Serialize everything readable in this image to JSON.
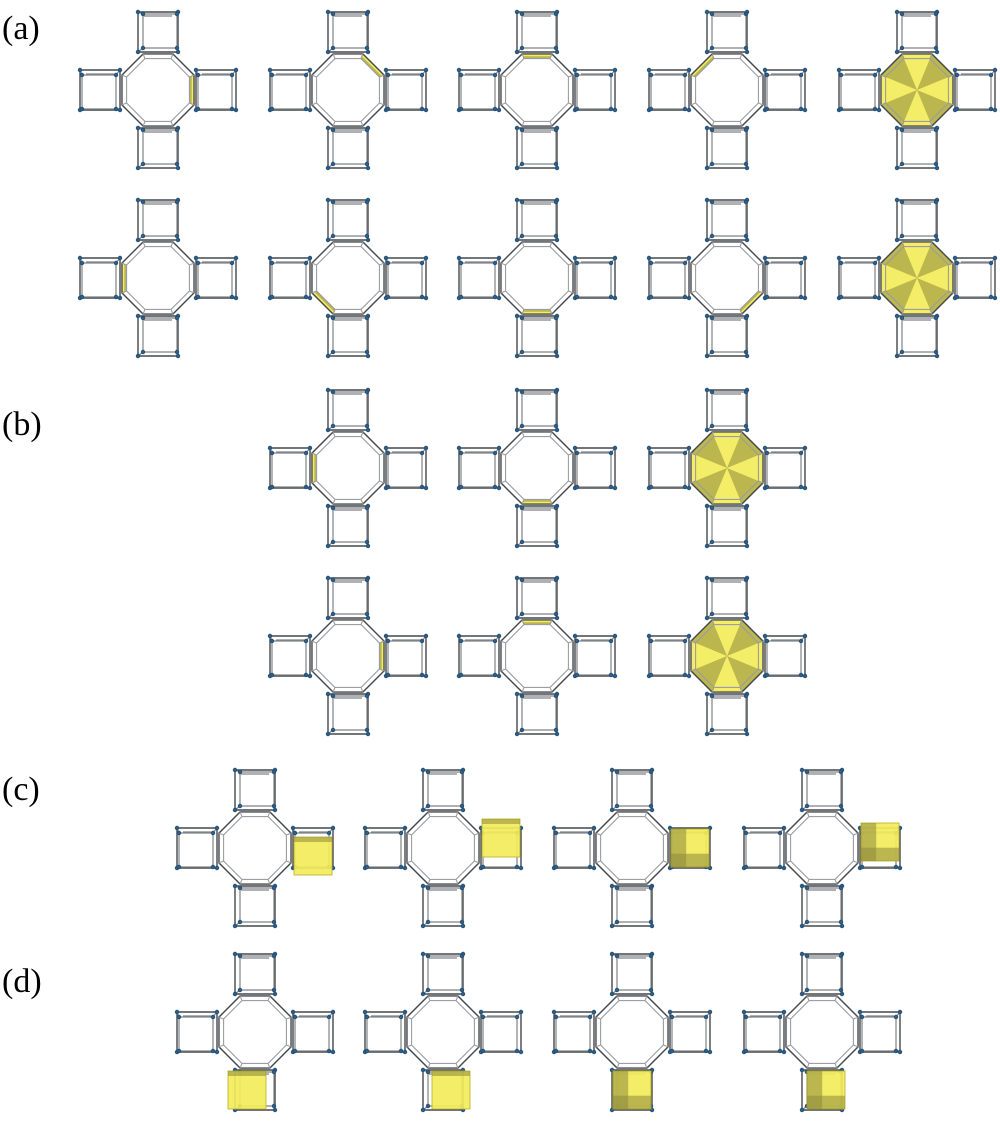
{
  "panels": [
    {
      "label": "(a)"
    },
    {
      "label": "(b)"
    },
    {
      "label": "(c)"
    },
    {
      "label": "(d)"
    }
  ],
  "highlight_color": "#f3ec5a",
  "atom_color": "#2b5f8c",
  "bond_color": "#7f8286",
  "structures": [
    {
      "panel": "a",
      "highlight": "edge-ne"
    },
    {
      "panel": "a",
      "highlight": "edge-n"
    },
    {
      "panel": "a",
      "highlight": "edge-nw"
    },
    {
      "panel": "a",
      "highlight": "edge-w"
    },
    {
      "panel": "a",
      "highlight": "octagon"
    },
    {
      "panel": "a",
      "highlight": "edge-sw"
    },
    {
      "panel": "a",
      "highlight": "edge-s"
    },
    {
      "panel": "a",
      "highlight": "edge-se"
    },
    {
      "panel": "a",
      "highlight": "edge-e"
    },
    {
      "panel": "a",
      "highlight": "octagon"
    },
    {
      "panel": "b",
      "highlight": "edge-sw"
    },
    {
      "panel": "b",
      "highlight": "edge-se"
    },
    {
      "panel": "b",
      "highlight": "octagon"
    },
    {
      "panel": "b",
      "highlight": "edge-ne"
    },
    {
      "panel": "b",
      "highlight": "edge-nw"
    },
    {
      "panel": "b",
      "highlight": "octagon"
    },
    {
      "panel": "c",
      "highlight": "square-e-low"
    },
    {
      "panel": "c",
      "highlight": "square-e-high"
    },
    {
      "panel": "c",
      "highlight": "cube-e"
    },
    {
      "panel": "c",
      "highlight": "cube-e-high"
    },
    {
      "panel": "d",
      "highlight": "square-s-left"
    },
    {
      "panel": "d",
      "highlight": "square-s-right"
    },
    {
      "panel": "d",
      "highlight": "cube-s"
    },
    {
      "panel": "d",
      "highlight": "cube-s-right"
    }
  ]
}
